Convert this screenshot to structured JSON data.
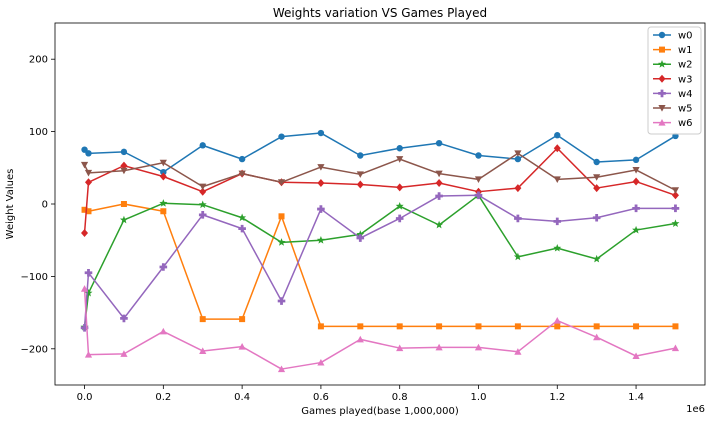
{
  "chart_data": {
    "type": "line",
    "title": "Weights variation VS Games Played",
    "xlabel": "Games played(base 1,000,000)",
    "ylabel": "Weight Values",
    "x_offset_label": "1e6",
    "xlim": [
      -0.075,
      1.575
    ],
    "ylim": [
      -250,
      250
    ],
    "xticks": [
      0.0,
      0.2,
      0.4,
      0.6,
      0.8,
      1.0,
      1.2,
      1.4
    ],
    "xtick_labels": [
      "0.0",
      "0.2",
      "0.4",
      "0.6",
      "0.8",
      "1.0",
      "1.2",
      "1.4"
    ],
    "yticks": [
      -200,
      -100,
      0,
      100,
      200
    ],
    "ytick_labels": [
      "−200",
      "−100",
      "0",
      "100",
      "200"
    ],
    "legend_position": "top-right",
    "x": [
      0.0,
      0.01,
      0.1,
      0.2,
      0.3,
      0.4,
      0.5,
      0.6,
      0.7,
      0.8,
      0.9,
      1.0,
      1.1,
      1.2,
      1.3,
      1.4,
      1.5
    ],
    "series": [
      {
        "name": "w0",
        "color": "#1f77b4",
        "marker": "circle",
        "values": [
          75,
          70,
          72,
          44,
          81,
          62,
          93,
          98,
          67,
          77,
          84,
          67,
          62,
          95,
          58,
          61,
          94
        ]
      },
      {
        "name": "w1",
        "color": "#ff7f0e",
        "marker": "square",
        "values": [
          -8,
          -10,
          0,
          -10,
          -159,
          -159,
          -17,
          -169,
          -169,
          -169,
          -169,
          -169,
          -169,
          -169,
          -169,
          -169,
          -169
        ]
      },
      {
        "name": "w2",
        "color": "#2ca02c",
        "marker": "star",
        "values": [
          -170,
          -123,
          -22,
          1,
          -1,
          -19,
          -53,
          -50,
          -42,
          -3,
          -29,
          12,
          -73,
          -61,
          -76,
          -36,
          -27
        ]
      },
      {
        "name": "w3",
        "color": "#d62728",
        "marker": "diamond",
        "values": [
          -40,
          30,
          53,
          38,
          17,
          42,
          30,
          29,
          27,
          23,
          29,
          17,
          22,
          77,
          22,
          31,
          12
        ]
      },
      {
        "name": "w4",
        "color": "#9467bd",
        "marker": "plus",
        "values": [
          -171,
          -95,
          -158,
          -87,
          -15,
          -34,
          -134,
          -7,
          -47,
          -20,
          11,
          12,
          -20,
          -24,
          -19,
          -6,
          -6
        ]
      },
      {
        "name": "w5",
        "color": "#8c564b",
        "marker": "triangle-down",
        "values": [
          54,
          43,
          46,
          57,
          24,
          42,
          30,
          51,
          41,
          62,
          42,
          34,
          70,
          34,
          37,
          47,
          19
        ]
      },
      {
        "name": "w6",
        "color": "#e377c2",
        "marker": "triangle-up",
        "values": [
          -117,
          -208,
          -207,
          -176,
          -203,
          -197,
          -228,
          -219,
          -187,
          -199,
          -198,
          -198,
          -204,
          -161,
          -184,
          -210,
          -199
        ]
      }
    ]
  }
}
